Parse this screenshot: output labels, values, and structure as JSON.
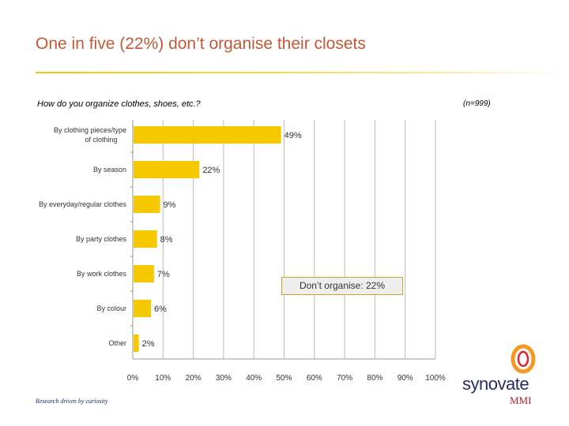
{
  "slide": {
    "title": "One in five (22%) don’t organise their closets",
    "question": "How do you organize clothes, shoes, etc.?",
    "sample": "(n=999)",
    "callout": "Don’t organise: 22%",
    "footer_tagline": "Research driven by curiosity",
    "logo": {
      "wordmark": "synovate",
      "sub": "MMI"
    }
  },
  "colors": {
    "bar": "#f5c800",
    "title": "#c05a36",
    "axis": "#bbbbbb"
  },
  "chart_data": {
    "type": "bar",
    "orientation": "horizontal",
    "categories": [
      "By clothing pieces/type of clothing",
      "By season",
      "By everyday/regular clothes",
      "By party clothes",
      "By work clothes",
      "By colour",
      "Other"
    ],
    "values": [
      49,
      22,
      9,
      8,
      7,
      6,
      2
    ],
    "value_labels": [
      "49%",
      "22%",
      "9%",
      "8%",
      "7%",
      "6%",
      "2%"
    ],
    "xlim": [
      0,
      100
    ],
    "x_ticks": [
      0,
      10,
      20,
      30,
      40,
      50,
      60,
      70,
      80,
      90,
      100
    ],
    "x_tick_labels": [
      "0%",
      "10%",
      "20%",
      "30%",
      "40%",
      "50%",
      "60%",
      "70%",
      "80%",
      "90%",
      "100%"
    ],
    "grid": true,
    "xlabel": "",
    "ylabel": ""
  }
}
